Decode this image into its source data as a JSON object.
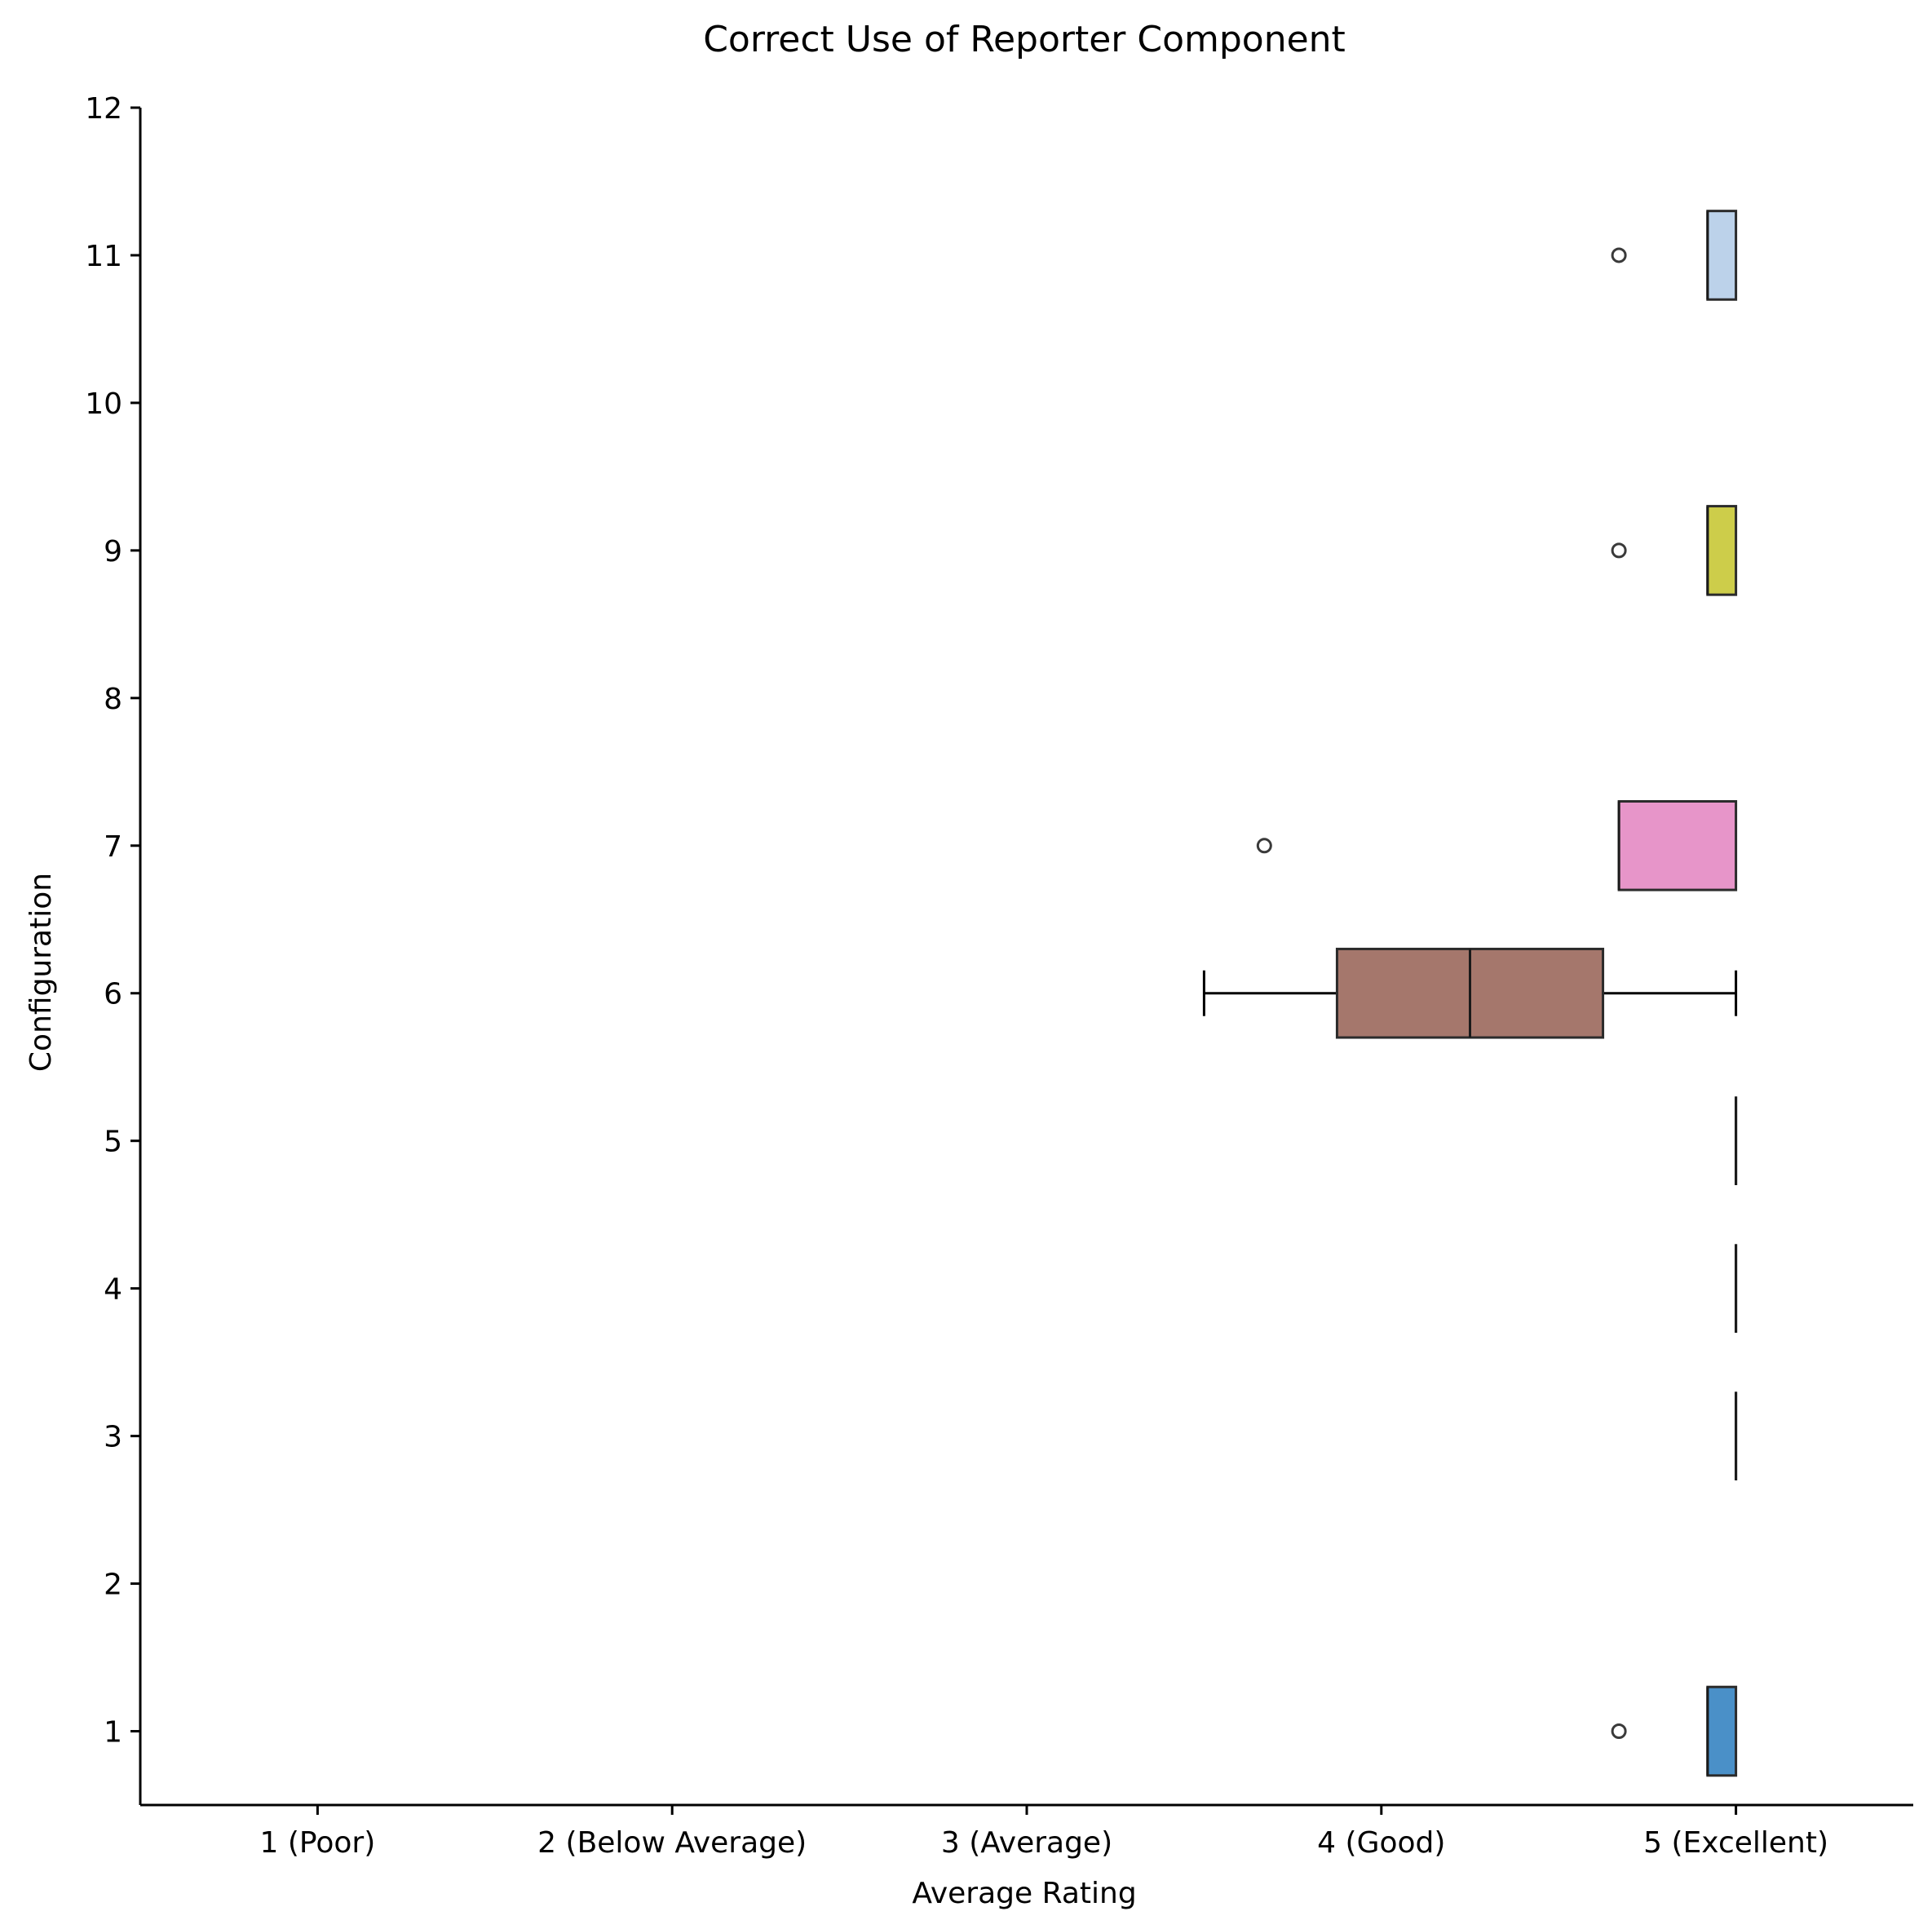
{
  "chart_data": {
    "type": "box",
    "orientation": "horizontal",
    "title": "Correct Use of Reporter Component",
    "xlabel": "Average Rating",
    "ylabel": "Configuration",
    "xlim": [
      0.5,
      5.5
    ],
    "ylim": [
      0.5,
      12
    ],
    "x_ticks": [
      {
        "value": 1,
        "label": "1 (Poor)"
      },
      {
        "value": 2,
        "label": "2 (Below Average)"
      },
      {
        "value": 3,
        "label": "3 (Average)"
      },
      {
        "value": 4,
        "label": "4 (Good)"
      },
      {
        "value": 5,
        "label": "5 (Excellent)"
      }
    ],
    "y_ticks": [
      1,
      2,
      3,
      4,
      5,
      6,
      7,
      8,
      9,
      10,
      11,
      12
    ],
    "grid": false,
    "boxes": [
      {
        "config": 1,
        "whisker_low": 4.92,
        "q1": 4.92,
        "median": 4.92,
        "q3": 5.0,
        "whisker_high": 5.0,
        "outliers": [
          4.67
        ],
        "color": "#4a90c8"
      },
      {
        "config": 3,
        "whisker_low": 5.0,
        "q1": 5.0,
        "median": 5.0,
        "q3": 5.0,
        "whisker_high": 5.0,
        "outliers": [],
        "color": "#000000"
      },
      {
        "config": 4,
        "whisker_low": 5.0,
        "q1": 5.0,
        "median": 5.0,
        "q3": 5.0,
        "whisker_high": 5.0,
        "outliers": [],
        "color": "#000000"
      },
      {
        "config": 5,
        "whisker_low": 5.0,
        "q1": 5.0,
        "median": 5.0,
        "q3": 5.0,
        "whisker_high": 5.0,
        "outliers": [],
        "color": "#000000"
      },
      {
        "config": 6,
        "whisker_low": 3.5,
        "q1": 3.875,
        "median": 4.25,
        "q3": 4.625,
        "whisker_high": 5.0,
        "outliers": [],
        "color": "#a5776c"
      },
      {
        "config": 7,
        "whisker_low": 4.67,
        "q1": 4.67,
        "median": 4.67,
        "q3": 5.0,
        "whisker_high": 5.0,
        "outliers": [
          3.67
        ],
        "color": "#e795c9"
      },
      {
        "config": 9,
        "whisker_low": 4.92,
        "q1": 4.92,
        "median": 4.92,
        "q3": 5.0,
        "whisker_high": 5.0,
        "outliers": [
          4.67
        ],
        "color": "#cdcd4a"
      },
      {
        "config": 11,
        "whisker_low": 4.92,
        "q1": 4.92,
        "median": 4.92,
        "q3": 5.0,
        "whisker_high": 5.0,
        "outliers": [
          4.67
        ],
        "color": "#bcd2ea"
      }
    ]
  }
}
